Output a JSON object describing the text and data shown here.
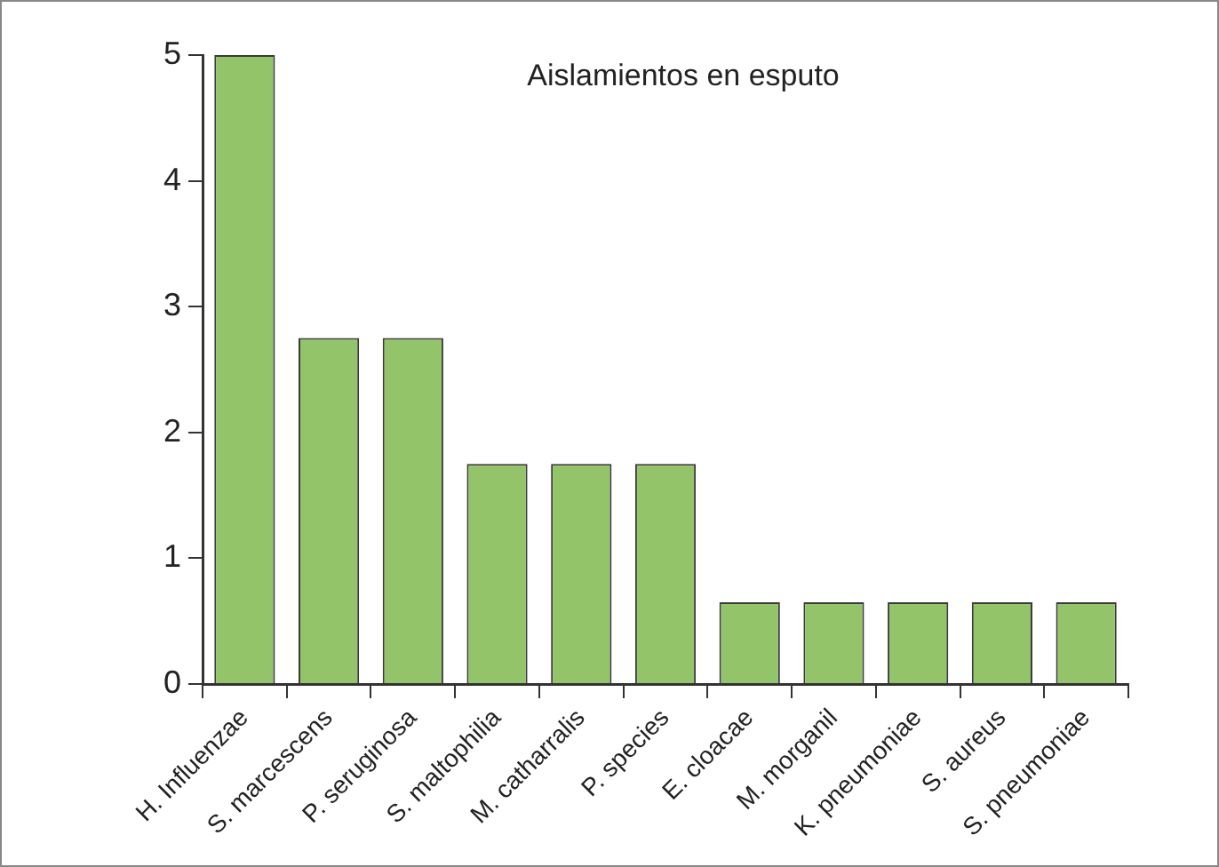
{
  "chart_data": {
    "type": "bar",
    "title": "Aislamientos en esputo",
    "categories": [
      "H. Influenzae",
      "S. marcescens",
      "P. seruginosa",
      "S. maltophilia",
      "M. catharralis",
      "P. species",
      "E. cloacae",
      "M. morganil",
      "K. pneumoniae",
      "S. aureus",
      "S. pneumoniae"
    ],
    "values": [
      5,
      2.75,
      2.75,
      1.75,
      1.75,
      1.75,
      0.65,
      0.65,
      0.65,
      0.65,
      0.65
    ],
    "color": "#93c46a",
    "ylim": [
      0,
      5
    ],
    "yticks": [
      0,
      1,
      2,
      3,
      4,
      5
    ],
    "grid": false,
    "legend": false
  }
}
